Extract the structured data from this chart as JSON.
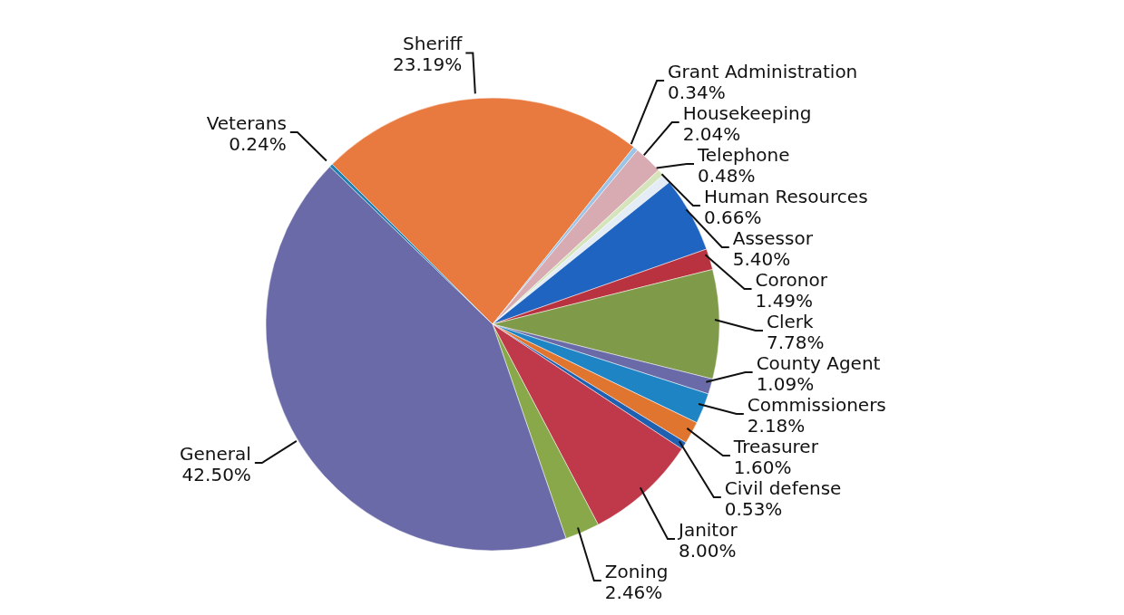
{
  "chart_data": {
    "type": "pie",
    "categories": [
      "Sheriff",
      "Grant Administration",
      "Housekeeping",
      "Telephone",
      "Human Resources",
      "Assessor",
      "Coronor",
      "Clerk",
      "County Agent",
      "Commissioners",
      "Treasurer",
      "Civil defense",
      "Janitor",
      "Zoning",
      "General",
      "Veterans"
    ],
    "values": [
      23.19,
      0.34,
      2.04,
      0.48,
      0.66,
      5.4,
      1.49,
      7.78,
      1.09,
      2.18,
      1.6,
      0.53,
      8.0,
      2.46,
      42.5,
      0.24
    ],
    "value_labels": [
      "23.19%",
      "0.34%",
      "2.04%",
      "0.48%",
      "0.66%",
      "5.40%",
      "1.49%",
      "7.78%",
      "1.09%",
      "2.18%",
      "1.60%",
      "0.53%",
      "8.00%",
      "2.46%",
      "42.50%",
      "0.24%"
    ],
    "colors": [
      "#e8793f",
      "#9dc3e6",
      "#d8aab2",
      "#d6e4bc",
      "#e4ecf6",
      "#1f64c0",
      "#b8323f",
      "#7f9a48",
      "#6a6aa8",
      "#1f84c4",
      "#e07530",
      "#2060b0",
      "#c0394a",
      "#88a84a",
      "#6a6aa8",
      "#2080b0"
    ],
    "legend": false
  }
}
